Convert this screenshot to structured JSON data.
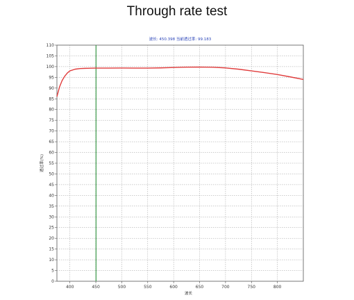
{
  "title": "Through rate test",
  "colors": {
    "curve": "#e03c3c",
    "cursor": "#3c9a4a",
    "readout": "#2a44b8",
    "grid": "#9a9a9a"
  },
  "chart_data": {
    "type": "line",
    "title": "Through rate test",
    "readout": "波长: 450.398  当前透过率: 99.183",
    "xlabel": "波长",
    "ylabel": "透过率(%)",
    "xlim": [
      375,
      850
    ],
    "ylim": [
      0,
      110
    ],
    "xticks": [
      400,
      450,
      500,
      550,
      600,
      650,
      700,
      750,
      800
    ],
    "yticks": [
      0,
      5,
      10,
      15,
      20,
      25,
      30,
      35,
      40,
      45,
      50,
      55,
      60,
      65,
      70,
      75,
      80,
      85,
      90,
      95,
      100,
      105,
      110
    ],
    "grid": true,
    "cursor_x": 450.398,
    "series": [
      {
        "x": [
          375,
          380,
          385,
          390,
          395,
          400,
          410,
          420,
          430,
          440,
          450,
          475,
          500,
          525,
          550,
          575,
          600,
          625,
          650,
          675,
          700,
          725,
          750,
          775,
          800,
          825,
          850
        ],
        "values": [
          86,
          90.5,
          93.5,
          95.5,
          97,
          98,
          98.8,
          99.1,
          99.2,
          99.25,
          99.3,
          99.3,
          99.35,
          99.3,
          99.3,
          99.4,
          99.6,
          99.75,
          99.8,
          99.7,
          99.4,
          98.8,
          98.0,
          97.2,
          96.3,
          95.2,
          94.0
        ]
      }
    ]
  }
}
